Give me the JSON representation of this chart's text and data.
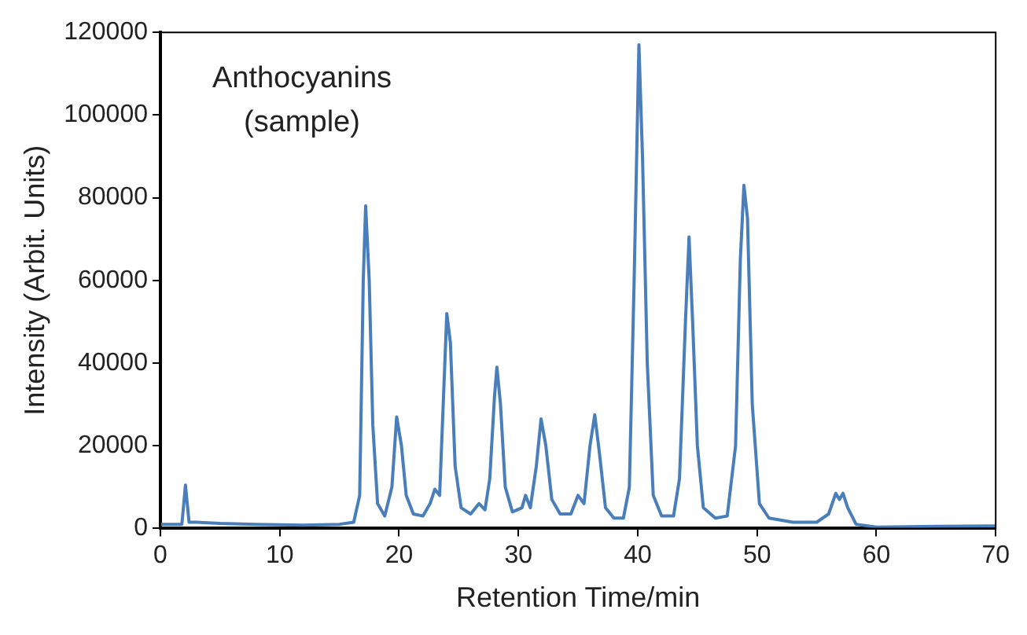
{
  "chart_data": {
    "type": "line",
    "xlabel": "Retention Time/min",
    "ylabel": "Intensity (Arbit. Units)",
    "annotations": [
      "Anthocyanins\n(sample)"
    ],
    "x": [
      0,
      1.8,
      2.1,
      2.4,
      3,
      5,
      8,
      12,
      15,
      16.2,
      16.7,
      17.0,
      17.2,
      17.5,
      17.8,
      18.2,
      18.8,
      19.4,
      19.8,
      20.2,
      20.6,
      21.2,
      22.0,
      22.6,
      23.0,
      23.4,
      23.7,
      24.0,
      24.3,
      24.7,
      25.2,
      26.0,
      26.7,
      27.2,
      27.6,
      28.0,
      28.2,
      28.5,
      28.9,
      29.5,
      30.3,
      30.6,
      31.0,
      31.5,
      31.9,
      32.3,
      32.8,
      33.5,
      34.4,
      35.0,
      35.5,
      36.0,
      36.4,
      36.8,
      37.3,
      38.0,
      38.8,
      39.3,
      39.7,
      40.1,
      40.4,
      40.8,
      41.3,
      42.0,
      43.0,
      43.5,
      44.0,
      44.3,
      44.6,
      45.0,
      45.5,
      46.5,
      47.5,
      48.2,
      48.6,
      48.9,
      49.2,
      49.6,
      50.2,
      51.0,
      53,
      55,
      56.0,
      56.6,
      56.9,
      57.2,
      57.6,
      58.3,
      60,
      65,
      70
    ],
    "series": [
      {
        "color": "#4a7ebb",
        "values": [
          1000,
          1000,
          10500,
          1500,
          1500,
          1200,
          1000,
          800,
          1000,
          1500,
          8000,
          60000,
          78000,
          60000,
          25000,
          6000,
          3000,
          10000,
          27000,
          20000,
          8000,
          3500,
          3000,
          6000,
          9500,
          8000,
          30000,
          52000,
          45000,
          15000,
          5000,
          3500,
          6000,
          4500,
          12000,
          32000,
          39000,
          30000,
          10000,
          4000,
          5000,
          8000,
          5000,
          15000,
          26500,
          20000,
          7000,
          3500,
          3500,
          8000,
          6000,
          20000,
          27500,
          18000,
          5000,
          2500,
          2500,
          10000,
          60000,
          117000,
          90000,
          40000,
          8000,
          3000,
          3000,
          12000,
          50000,
          70500,
          50000,
          20000,
          5000,
          2500,
          3000,
          20000,
          65000,
          83000,
          75000,
          30000,
          6000,
          2500,
          1500,
          1500,
          3500,
          8500,
          7000,
          8500,
          5000,
          1000,
          300,
          500,
          600
        ]
      }
    ],
    "xlim": [
      0,
      70
    ],
    "xticks": [
      0,
      10,
      20,
      30,
      40,
      50,
      60,
      70
    ],
    "ylim": [
      0,
      120000
    ],
    "yticks": [
      0,
      20000,
      40000,
      60000,
      80000,
      100000,
      120000
    ],
    "grid": false,
    "legend": false,
    "marker": "none",
    "line_style": "solid"
  }
}
